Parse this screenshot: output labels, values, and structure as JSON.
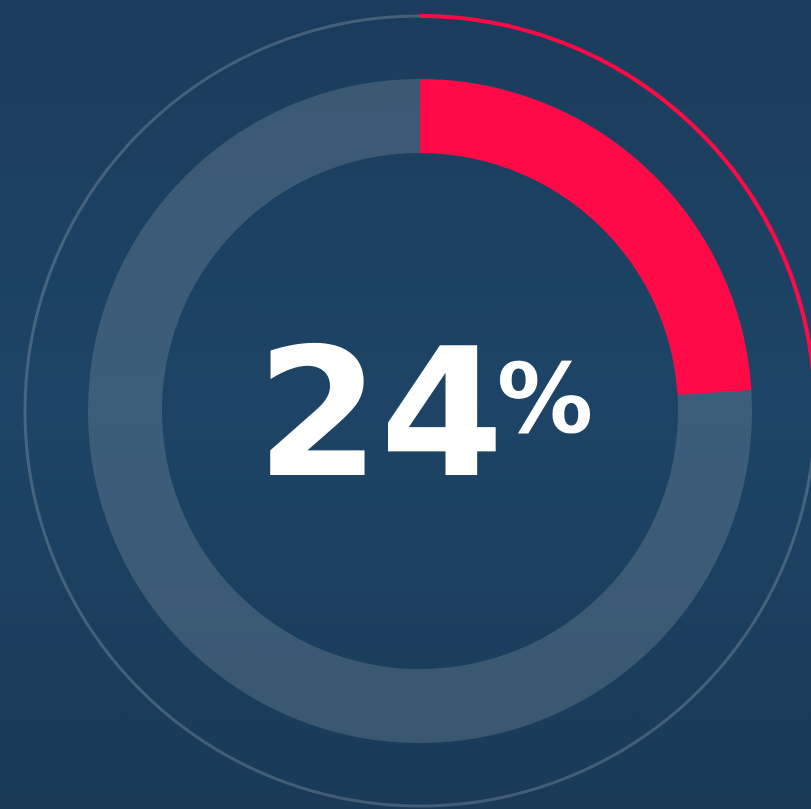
{
  "chart_data": {
    "type": "donut",
    "value": 24,
    "unit": "%",
    "ylim": [
      0,
      100
    ],
    "color": "#ff0a47"
  }
}
